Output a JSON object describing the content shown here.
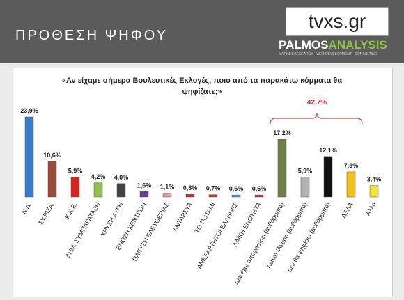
{
  "header": {
    "title": "ΠΡΟΘΕΣΗ ΨΗΦΟΥ",
    "logo_1": "tvxs.gr",
    "logo_2_a": "PALMOS",
    "logo_2_b": "ANALYSIS",
    "logo_2_tagline": "MARKET RESEARCH · WEB DEVELOPMENT · CONSULTING"
  },
  "chart_data": {
    "type": "bar",
    "title": "«Αν είχαμε σήμερα Βουλευτικές Εκλογές, ποιο από τα παρακάτω κόμματα θα ψηφίζατε;»",
    "annotation": "42,7%",
    "categories": [
      "Ν.Δ.",
      "ΣΥ.ΡΙΖΑ.",
      "Κ.Κ.Ε.",
      "ΔΗΜ. ΣΥΜΠΑΡΑΤΑΞΗ",
      "ΧΡΥΣΗ ΑΥΓΗ",
      "ΕΝΩΣΗ ΚΕΝΤΡΩΝ",
      "ΠΛΕΥΣΗ ΕΛΕΥΘΕΡΙΑΣ",
      "ΑΝΤΑΡΣΥΑ",
      "ΤΟ ΠΟΤΑΜΙ",
      "ΑΝΕΞΑΡΤΗΤΟΙ ΕΛΛΗΝΕΣ",
      "ΛΑΪΚΗ ΕΝΟΤΗΤΑ",
      "Δεν έχω αποφασίσει (αυθόρμητα)",
      "Λευκό /Άκυρο (αυθόρμητα)",
      "Δεν θα ψηφίσω (αυθόρμητα)",
      "ΔΞΔΑ",
      "Άλλο"
    ],
    "values": [
      23.9,
      10.6,
      5.9,
      4.2,
      4.0,
      1.6,
      1.1,
      0.8,
      0.7,
      0.6,
      0.6,
      17.2,
      5.9,
      12.1,
      7.5,
      3.4
    ],
    "value_labels": [
      "23,9%",
      "10,6%",
      "5,9%",
      "4,2%",
      "4,0%",
      "1,6%",
      "1,1%",
      "0,8%",
      "0,7%",
      "0,6%",
      "0,6%",
      "17,2%",
      "5,9%",
      "12,1%",
      "7,5%",
      "3,4%"
    ],
    "colors": [
      "#3b7cc6",
      "#9c4a3c",
      "#d4261c",
      "#8fc14c",
      "#414141",
      "#6b3b9b",
      "#e7a3a3",
      "#c2322a",
      "#b24422",
      "#4aa2d2",
      "#c33131",
      "#6f7f4b",
      "#b2b2b2",
      "#111111",
      "#f0c21e",
      "#f3e23e"
    ]
  }
}
